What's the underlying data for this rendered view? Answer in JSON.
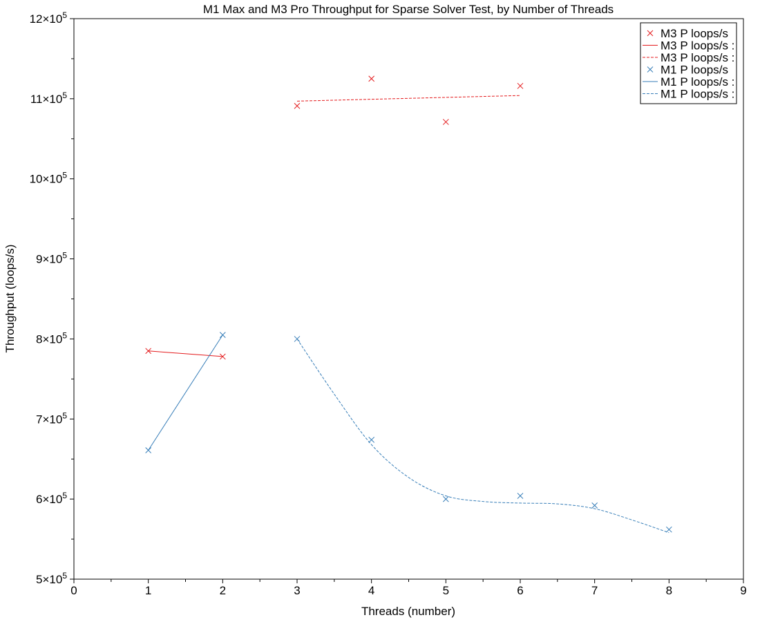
{
  "chart_data": {
    "type": "line",
    "title": "M1 Max and M3 Pro Throughput for Sparse Solver Test, by Number of Threads",
    "xlabel": "Threads (number)",
    "ylabel": "Throughput (loops/s)",
    "xlim": [
      0,
      9
    ],
    "ylim": [
      500000,
      1200000
    ],
    "x_ticks": [
      0,
      1,
      2,
      3,
      4,
      5,
      6,
      7,
      8,
      9
    ],
    "y_ticks": [
      {
        "value": 500000,
        "mantissa": "5",
        "exp": "5"
      },
      {
        "value": 600000,
        "mantissa": "6",
        "exp": "5"
      },
      {
        "value": 700000,
        "mantissa": "7",
        "exp": "5"
      },
      {
        "value": 800000,
        "mantissa": "8",
        "exp": "5"
      },
      {
        "value": 900000,
        "mantissa": "9",
        "exp": "5"
      },
      {
        "value": 1000000,
        "mantissa": "10",
        "exp": "5"
      },
      {
        "value": 1100000,
        "mantissa": "11",
        "exp": "5"
      },
      {
        "value": 1200000,
        "mantissa": "12",
        "exp": "5"
      }
    ],
    "grid": false,
    "legend_position": "top-right",
    "series": [
      {
        "name": "M3 P loops/s",
        "style": "markers",
        "color": "#e41a1c",
        "x": [
          1,
          2,
          3,
          4,
          5,
          6
        ],
        "y": [
          785000,
          778000,
          1091000,
          1125000,
          1071000,
          1116000
        ]
      },
      {
        "name": "M3 P loops/s :",
        "style": "solid",
        "color": "#e41a1c",
        "x": [
          1,
          2
        ],
        "y": [
          785000,
          778000
        ]
      },
      {
        "name": "M3 P loops/s :",
        "style": "dashed",
        "color": "#e41a1c",
        "x": [
          3,
          6
        ],
        "y": [
          1097000,
          1104000
        ]
      },
      {
        "name": "M1 P loops/s",
        "style": "markers",
        "color": "#377eb8",
        "x": [
          1,
          2,
          3,
          4,
          5,
          6,
          7,
          8
        ],
        "y": [
          661000,
          805000,
          800000,
          674000,
          600000,
          604000,
          592000,
          562000
        ]
      },
      {
        "name": "M1 P loops/s :",
        "style": "solid",
        "color": "#377eb8",
        "x": [
          1,
          2
        ],
        "y": [
          661000,
          805000
        ]
      },
      {
        "name": "M1 P loops/s :",
        "style": "dashed",
        "color": "#377eb8",
        "x": [
          3,
          3.5,
          4,
          4.5,
          5,
          5.5,
          6,
          6.5,
          7,
          7.5,
          8
        ],
        "y": [
          800000,
          731000,
          668000,
          627000,
          604000,
          597000,
          595000,
          594000,
          588000,
          574000,
          558000
        ]
      }
    ]
  },
  "legend": {
    "items": [
      {
        "label": "M3 P loops/s",
        "kind": "marker",
        "color": "#e41a1c"
      },
      {
        "label": "M3 P loops/s :",
        "kind": "solid",
        "color": "#e41a1c"
      },
      {
        "label": "M3 P loops/s :",
        "kind": "dashed",
        "color": "#e41a1c"
      },
      {
        "label": "M1 P loops/s",
        "kind": "marker",
        "color": "#377eb8"
      },
      {
        "label": "M1 P loops/s :",
        "kind": "solid",
        "color": "#377eb8"
      },
      {
        "label": "M1 P loops/s :",
        "kind": "dashed",
        "color": "#377eb8"
      }
    ]
  }
}
